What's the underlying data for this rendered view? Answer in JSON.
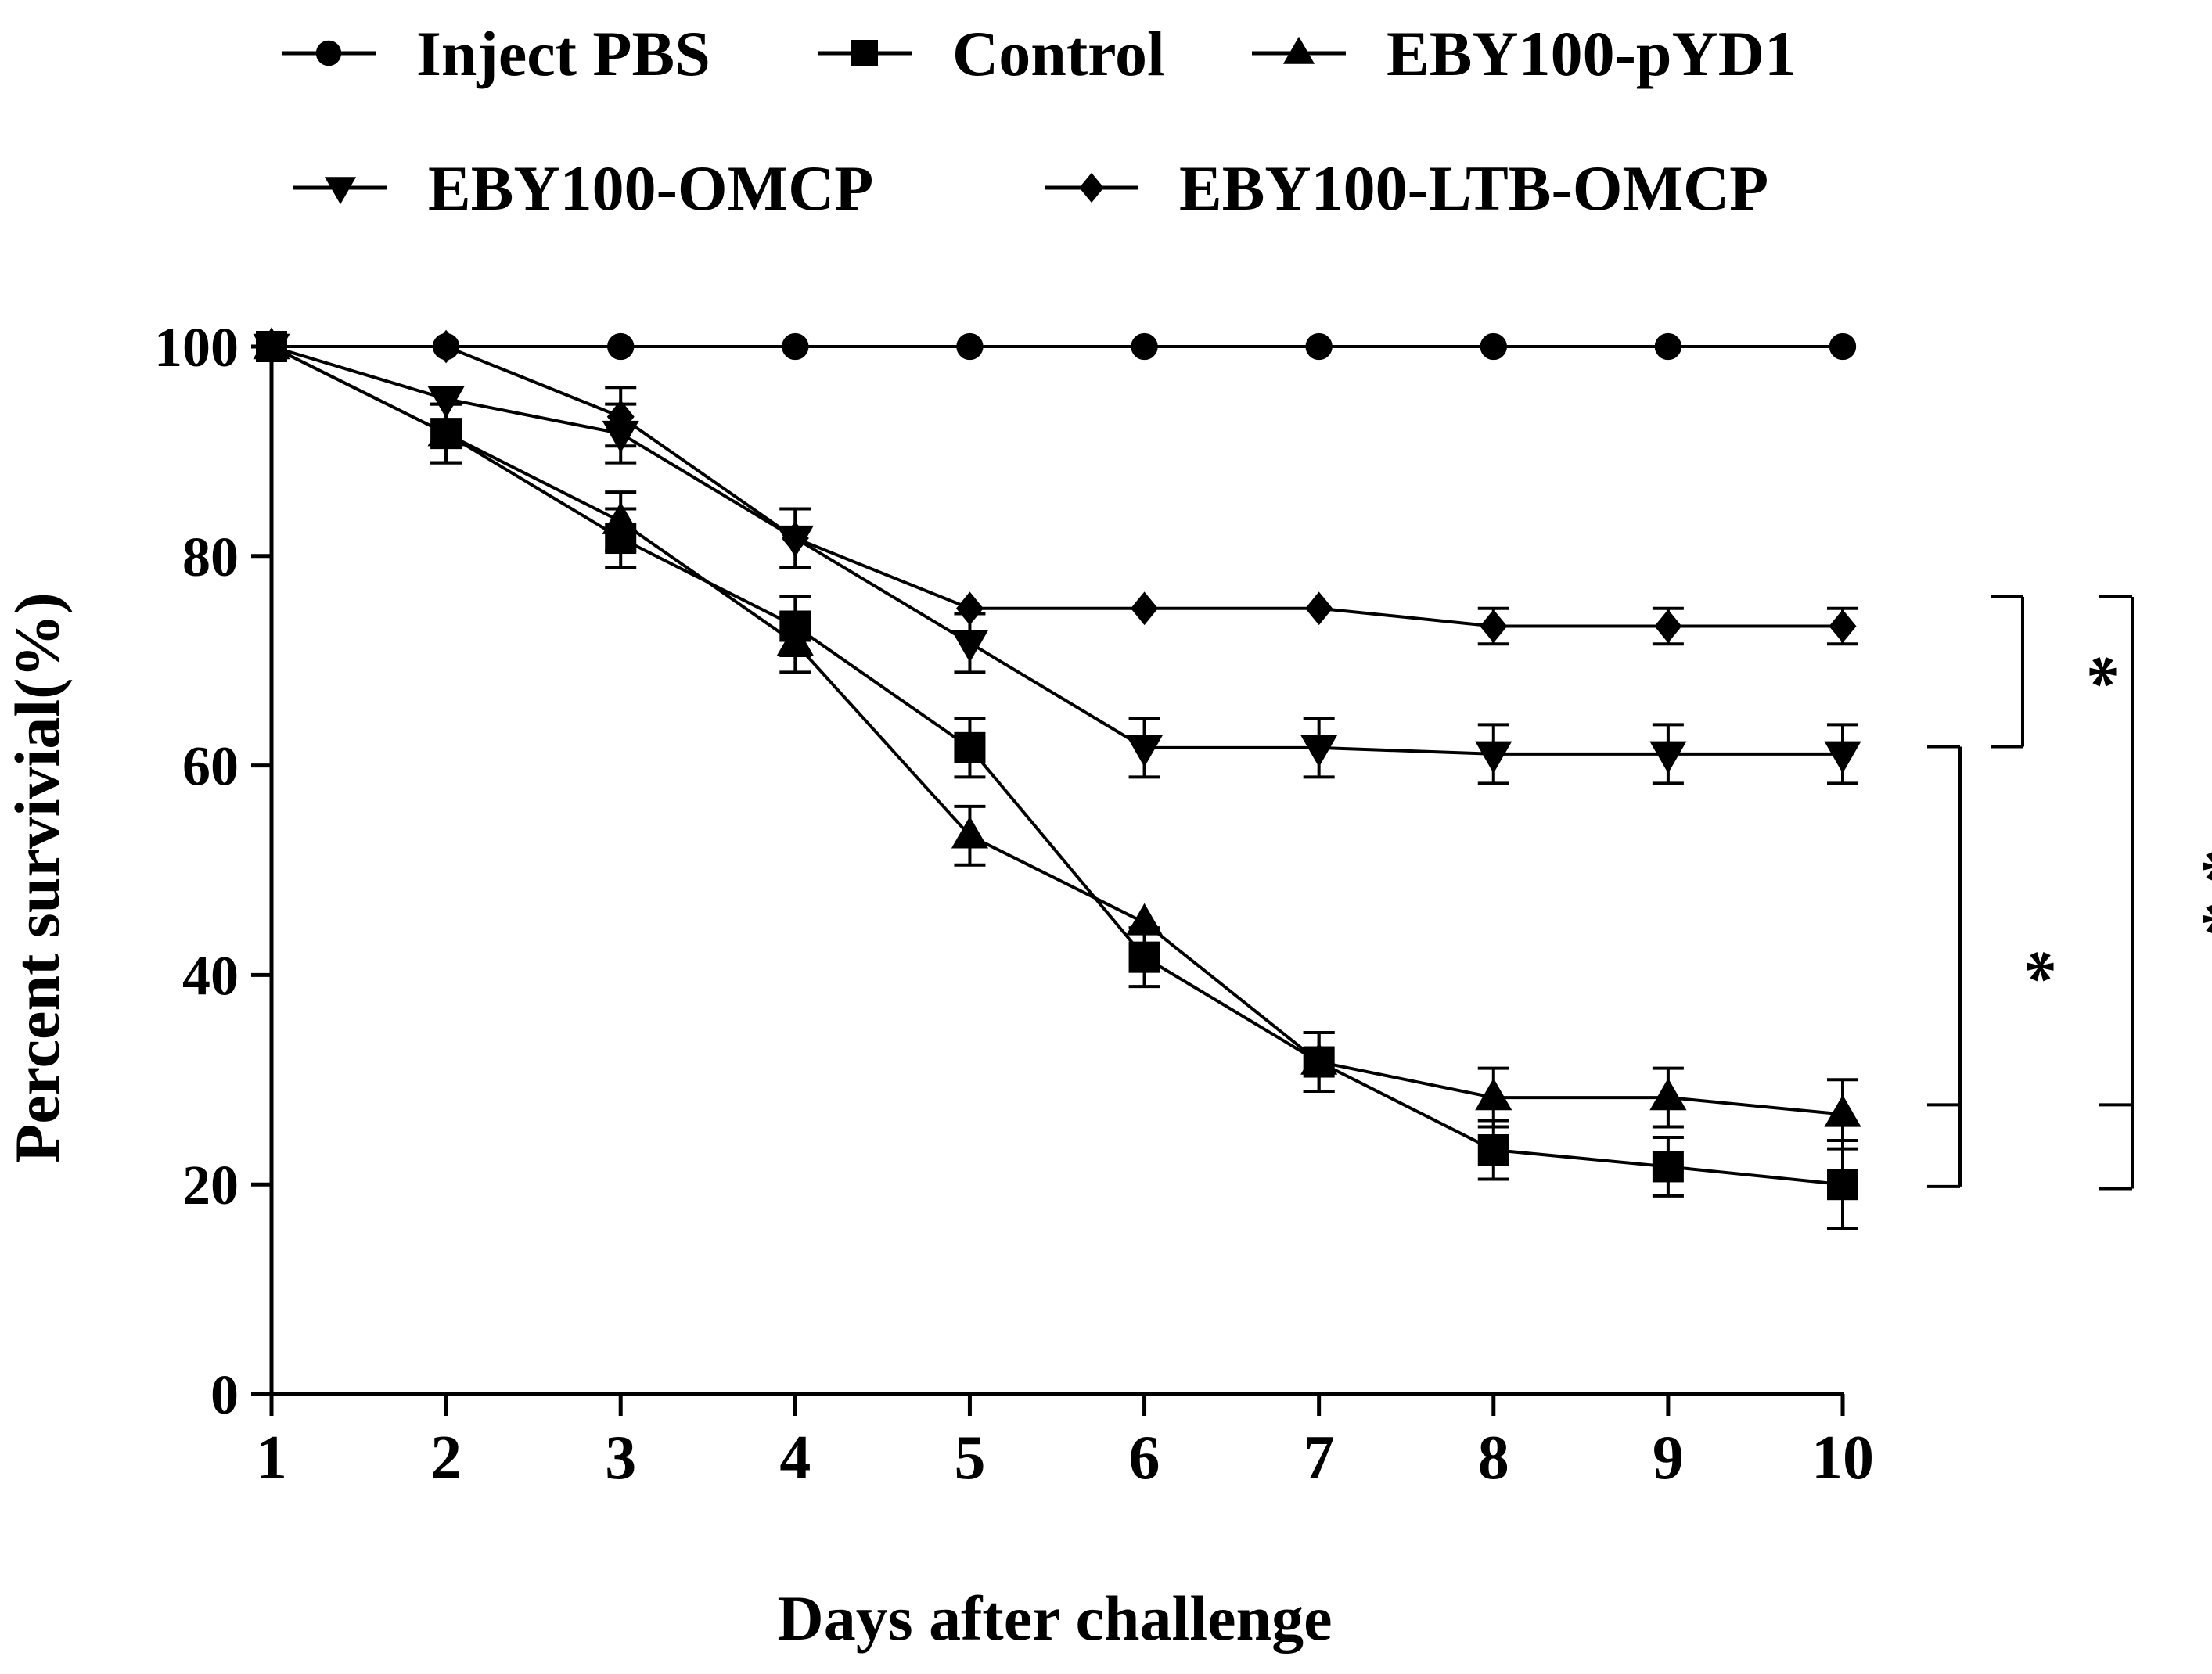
{
  "chart_data": {
    "type": "line",
    "xlabel": "Days after challenge",
    "ylabel": "Percent survivial(%)",
    "x": [
      1,
      2,
      3,
      4,
      5,
      6,
      7,
      8,
      9,
      10
    ],
    "xlim": [
      1,
      10
    ],
    "ylim": [
      0,
      100
    ],
    "yticks": [
      0,
      20,
      40,
      60,
      80,
      100
    ],
    "xticks": [
      "1",
      "2",
      "3",
      "4",
      "5",
      "6",
      "7",
      "8",
      "9",
      "10"
    ],
    "grid": false,
    "legend_position": "top",
    "series": [
      {
        "name": "Inject PBS",
        "marker": "circle",
        "values": [
          100,
          100,
          100,
          100,
          100,
          100,
          100,
          100,
          100,
          100
        ],
        "errors": [
          0,
          0,
          0,
          0,
          0,
          0,
          0,
          0,
          0,
          0
        ]
      },
      {
        "name": "Control",
        "marker": "square",
        "values": [
          100,
          91.7,
          81.7,
          73.3,
          61.7,
          41.7,
          31.7,
          23.3,
          21.7,
          20
        ],
        "errors": [
          0,
          2.8,
          2.8,
          2.8,
          2.8,
          2.8,
          2.8,
          2.8,
          2.8,
          4.2
        ]
      },
      {
        "name": "EBY100-pYD1",
        "marker": "triangle-up",
        "values": [
          100,
          91.7,
          83.3,
          71.7,
          53.3,
          45,
          31.7,
          28.3,
          28.3,
          26.7
        ],
        "errors": [
          0,
          2.8,
          2.8,
          2.8,
          2.8,
          0,
          2.8,
          2.8,
          2.8,
          3.3
        ]
      },
      {
        "name": "EBY100-OMCP",
        "marker": "triangle-down",
        "values": [
          100,
          95,
          91.7,
          81.7,
          71.7,
          61.7,
          61.7,
          61.1,
          61.1,
          61.1
        ],
        "errors": [
          0,
          0,
          2.8,
          2.8,
          2.8,
          2.8,
          2.8,
          2.8,
          2.8,
          2.8
        ]
      },
      {
        "name": "EBY100-LTB-OMCP",
        "marker": "diamond",
        "values": [
          100,
          100,
          93.3,
          81.7,
          75,
          75,
          75,
          73.3,
          73.3,
          73.3
        ],
        "errors": [
          0,
          0,
          2.8,
          2.8,
          0,
          0,
          0,
          1.7,
          1.7,
          1.7
        ]
      }
    ],
    "significance": [
      {
        "label": "*",
        "from": "EBY100-LTB-OMCP",
        "to": "EBY100-OMCP"
      },
      {
        "label": "*",
        "from": "EBY100-OMCP",
        "to": "Control / EBY100-pYD1"
      },
      {
        "label": "* *",
        "from": "EBY100-LTB-OMCP",
        "to": "Control / EBY100-pYD1"
      }
    ]
  }
}
